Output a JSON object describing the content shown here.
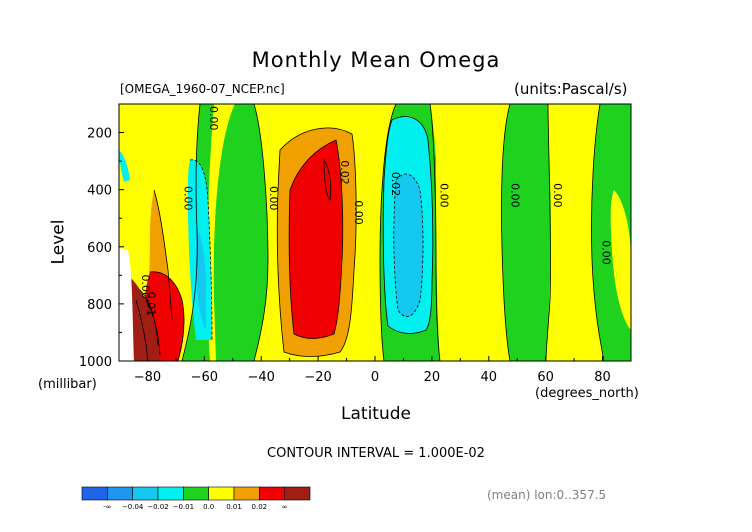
{
  "header": {
    "title": "Monthly Mean Omega",
    "file": "[OMEGA_1960-07_NCEP.nc]",
    "units": "(units:Pascal/s)"
  },
  "footer": {
    "contour_interval": "CONTOUR INTERVAL = 1.000E-02",
    "mean_note": "(mean) lon:0..357.5"
  },
  "colors": {
    "dark_blue": "#1e64e6",
    "blue": "#1e96f0",
    "light_blue": "#14c8f0",
    "cyan": "#00f0f0",
    "green": "#1ed21e",
    "yellow": "#ffff00",
    "orange": "#f0a000",
    "red": "#f00000",
    "dark_red": "#a01e14"
  },
  "chart_data": {
    "type": "heatmap",
    "title": "Monthly Mean Omega",
    "xlabel": "Latitude",
    "xunit": "(degrees_north)",
    "ylabel": "Level",
    "yunit": "(millibar)",
    "xlim": [
      -90,
      90
    ],
    "ylim": [
      1000,
      100
    ],
    "xticks": [
      -80,
      -60,
      -40,
      -20,
      0,
      20,
      40,
      60,
      80
    ],
    "xticklabels": [
      "−80",
      "−60",
      "−40",
      "−20",
      "0",
      "20",
      "40",
      "60",
      "80"
    ],
    "yticks": [
      200,
      400,
      600,
      800,
      1000
    ],
    "yticklabels": [
      "200",
      "400",
      "600",
      "800",
      "1000"
    ],
    "contour_interval": 0.01,
    "contour_labels": [
      {
        "text": "0.00",
        "lat": -58,
        "lev": 150
      },
      {
        "text": "0.00",
        "lat": -67,
        "lev": 430
      },
      {
        "text": "0.00",
        "lat": -37,
        "lev": 430
      },
      {
        "text": "0.02",
        "lat": -12,
        "lev": 340
      },
      {
        "text": "0.00",
        "lat": -7,
        "lev": 480
      },
      {
        "text": "0.02",
        "lat": 6,
        "lev": 380
      },
      {
        "text": "0.00",
        "lat": 23,
        "lev": 420
      },
      {
        "text": "0.00",
        "lat": 48,
        "lev": 420
      },
      {
        "text": "0.00",
        "lat": 63,
        "lev": 420
      },
      {
        "text": "0.00",
        "lat": 80,
        "lev": 620
      },
      {
        "text": "0.00",
        "lat": -82,
        "lev": 740
      },
      {
        "text": "0.01",
        "lat": -80,
        "lev": 800
      }
    ],
    "legend": {
      "placement": "bottom-left",
      "labels": [
        "-∞",
        "−0.04",
        "−0.02",
        "−0.01",
        "0.0",
        "0.01",
        "0.02",
        "∞"
      ],
      "colors": [
        "#1e64e6",
        "#1e96f0",
        "#14c8f0",
        "#00f0f0",
        "#1ed21e",
        "#ffff00",
        "#f0a000",
        "#f00000",
        "#a01e14"
      ]
    }
  }
}
